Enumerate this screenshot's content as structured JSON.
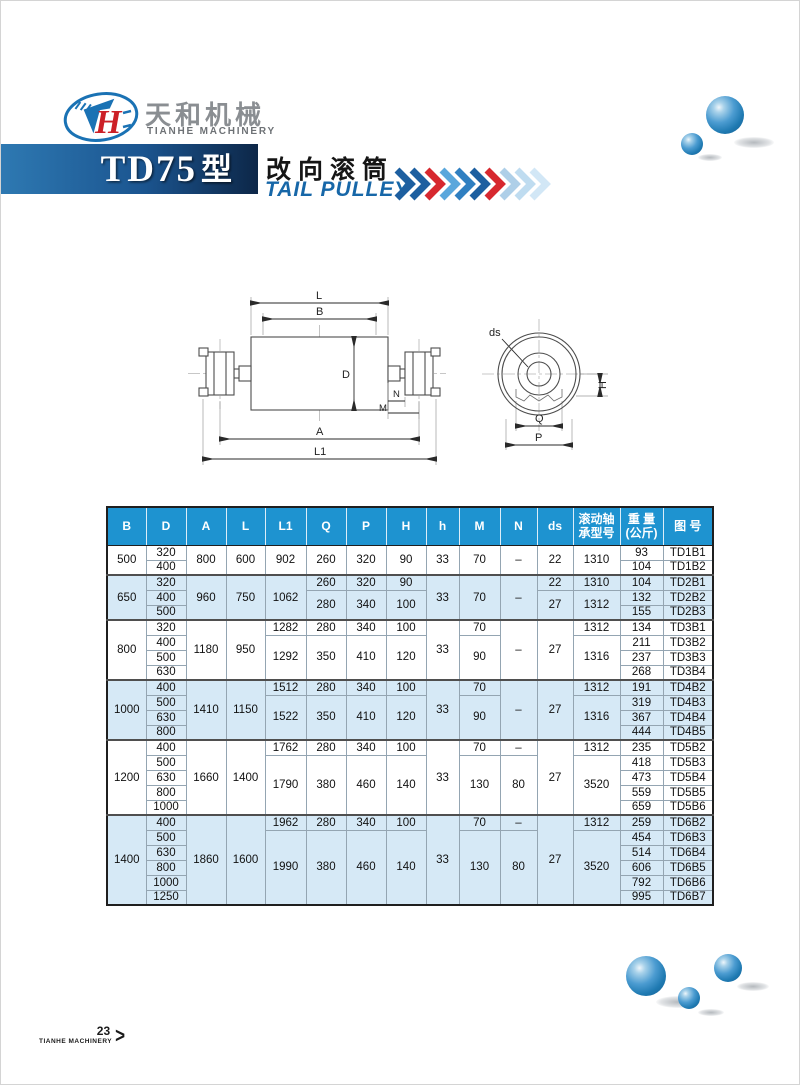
{
  "header": {
    "company_cn": "天和机械",
    "company_en": "TIANHE MACHINERY",
    "model": "TD75",
    "model_suffix": "型",
    "product_cn": "改向滚筒",
    "product_en": "TAIL PULLEY",
    "monogram": "H",
    "arrow_colors": [
      "#1d5fa0",
      "#1d5fa0",
      "#d7282f",
      "#5aa7dc",
      "#2f7fc1",
      "#1d5fa0",
      "#d7282f",
      "#aecfe8",
      "#bfdcf0",
      "#d2e7f6"
    ],
    "accent_blue": "#1e93d0",
    "accent_red": "#d7282f"
  },
  "drawing": {
    "labels": {
      "L": "L",
      "B": "B",
      "D": "D",
      "A": "A",
      "L1": "L1",
      "N": "N",
      "M": "M",
      "ds": "ds",
      "H": "H",
      "Q": "Q",
      "P": "P"
    }
  },
  "table": {
    "columns": [
      "B",
      "D",
      "A",
      "L",
      "L1",
      "Q",
      "P",
      "H",
      "h",
      "M",
      "N",
      "ds",
      "滚动轴\n承型号",
      "重 量\n(公斤)",
      "图 号"
    ],
    "shade_color": "#d6e9f6",
    "header_color": "#1e93d0",
    "rows": [
      {
        "shade": false,
        "gs": false,
        "cells": [
          {
            "t": "500",
            "rs": 2
          },
          {
            "t": "320"
          },
          {
            "t": "800",
            "rs": 2
          },
          {
            "t": "600",
            "rs": 2
          },
          {
            "t": "902",
            "rs": 2
          },
          {
            "t": "260",
            "rs": 2
          },
          {
            "t": "320",
            "rs": 2
          },
          {
            "t": "90",
            "rs": 2
          },
          {
            "t": "33",
            "rs": 2
          },
          {
            "t": "70",
            "rs": 2
          },
          {
            "t": "–",
            "rs": 2
          },
          {
            "t": "22",
            "rs": 2
          },
          {
            "t": "1310",
            "rs": 2
          },
          {
            "t": "93"
          },
          {
            "t": "TD1B1"
          }
        ]
      },
      {
        "shade": false,
        "gs": false,
        "cells": [
          {
            "t": "400"
          },
          {
            "t": "104"
          },
          {
            "t": "TD1B2"
          }
        ]
      },
      {
        "shade": true,
        "gs": true,
        "cells": [
          {
            "t": "650",
            "rs": 3
          },
          {
            "t": "320"
          },
          {
            "t": "960",
            "rs": 3
          },
          {
            "t": "750",
            "rs": 3
          },
          {
            "t": "1062",
            "rs": 3
          },
          {
            "t": "260"
          },
          {
            "t": "320"
          },
          {
            "t": "90"
          },
          {
            "t": "33",
            "rs": 3
          },
          {
            "t": "70",
            "rs": 3
          },
          {
            "t": "–",
            "rs": 3
          },
          {
            "t": "22"
          },
          {
            "t": "1310"
          },
          {
            "t": "104"
          },
          {
            "t": "TD2B1"
          }
        ]
      },
      {
        "shade": true,
        "gs": false,
        "cells": [
          {
            "t": "400"
          },
          {
            "t": "280",
            "rs": 2
          },
          {
            "t": "340",
            "rs": 2
          },
          {
            "t": "100",
            "rs": 2
          },
          {
            "t": "27",
            "rs": 2
          },
          {
            "t": "1312",
            "rs": 2
          },
          {
            "t": "132"
          },
          {
            "t": "TD2B2"
          }
        ]
      },
      {
        "shade": true,
        "gs": false,
        "cells": [
          {
            "t": "500"
          },
          {
            "t": "155"
          },
          {
            "t": "TD2B3"
          }
        ]
      },
      {
        "shade": false,
        "gs": true,
        "cells": [
          {
            "t": "800",
            "rs": 4
          },
          {
            "t": "320"
          },
          {
            "t": "1180",
            "rs": 4
          },
          {
            "t": "950",
            "rs": 4
          },
          {
            "t": "1282"
          },
          {
            "t": "280"
          },
          {
            "t": "340"
          },
          {
            "t": "100"
          },
          {
            "t": "33",
            "rs": 4
          },
          {
            "t": "70"
          },
          {
            "t": "–",
            "rs": 4
          },
          {
            "t": "27",
            "rs": 4
          },
          {
            "t": "1312"
          },
          {
            "t": "134"
          },
          {
            "t": "TD3B1"
          }
        ]
      },
      {
        "shade": false,
        "gs": false,
        "cells": [
          {
            "t": "400"
          },
          {
            "t": "1292",
            "rs": 3
          },
          {
            "t": "350",
            "rs": 3
          },
          {
            "t": "410",
            "rs": 3
          },
          {
            "t": "120",
            "rs": 3
          },
          {
            "t": "90",
            "rs": 3
          },
          {
            "t": "1316",
            "rs": 3
          },
          {
            "t": "211"
          },
          {
            "t": "TD3B2"
          }
        ]
      },
      {
        "shade": false,
        "gs": false,
        "cells": [
          {
            "t": "500"
          },
          {
            "t": "237"
          },
          {
            "t": "TD3B3"
          }
        ]
      },
      {
        "shade": false,
        "gs": false,
        "cells": [
          {
            "t": "630"
          },
          {
            "t": "268"
          },
          {
            "t": "TD3B4"
          }
        ]
      },
      {
        "shade": true,
        "gs": true,
        "cells": [
          {
            "t": "1000",
            "rs": 4
          },
          {
            "t": "400"
          },
          {
            "t": "1410",
            "rs": 4
          },
          {
            "t": "1150",
            "rs": 4
          },
          {
            "t": "1512"
          },
          {
            "t": "280"
          },
          {
            "t": "340"
          },
          {
            "t": "100"
          },
          {
            "t": "33",
            "rs": 4
          },
          {
            "t": "70"
          },
          {
            "t": "–",
            "rs": 4
          },
          {
            "t": "27",
            "rs": 4
          },
          {
            "t": "1312"
          },
          {
            "t": "191"
          },
          {
            "t": "TD4B2"
          }
        ]
      },
      {
        "shade": true,
        "gs": false,
        "cells": [
          {
            "t": "500"
          },
          {
            "t": "1522",
            "rs": 3
          },
          {
            "t": "350",
            "rs": 3
          },
          {
            "t": "410",
            "rs": 3
          },
          {
            "t": "120",
            "rs": 3
          },
          {
            "t": "90",
            "rs": 3
          },
          {
            "t": "1316",
            "rs": 3
          },
          {
            "t": "319"
          },
          {
            "t": "TD4B3"
          }
        ]
      },
      {
        "shade": true,
        "gs": false,
        "cells": [
          {
            "t": "630"
          },
          {
            "t": "367"
          },
          {
            "t": "TD4B4"
          }
        ]
      },
      {
        "shade": true,
        "gs": false,
        "cells": [
          {
            "t": "800"
          },
          {
            "t": "444"
          },
          {
            "t": "TD4B5"
          }
        ]
      },
      {
        "shade": false,
        "gs": true,
        "cells": [
          {
            "t": "1200",
            "rs": 5
          },
          {
            "t": "400"
          },
          {
            "t": "1660",
            "rs": 5
          },
          {
            "t": "1400",
            "rs": 5
          },
          {
            "t": "1762"
          },
          {
            "t": "280"
          },
          {
            "t": "340"
          },
          {
            "t": "100"
          },
          {
            "t": "33",
            "rs": 5
          },
          {
            "t": "70"
          },
          {
            "t": "–"
          },
          {
            "t": "27",
            "rs": 5
          },
          {
            "t": "1312"
          },
          {
            "t": "235"
          },
          {
            "t": "TD5B2"
          }
        ]
      },
      {
        "shade": false,
        "gs": false,
        "cells": [
          {
            "t": "500"
          },
          {
            "t": "1790",
            "rs": 4
          },
          {
            "t": "380",
            "rs": 4
          },
          {
            "t": "460",
            "rs": 4
          },
          {
            "t": "140",
            "rs": 4
          },
          {
            "t": "130",
            "rs": 4
          },
          {
            "t": "80",
            "rs": 4
          },
          {
            "t": "3520",
            "rs": 4
          },
          {
            "t": "418"
          },
          {
            "t": "TD5B3"
          }
        ]
      },
      {
        "shade": false,
        "gs": false,
        "cells": [
          {
            "t": "630"
          },
          {
            "t": "473"
          },
          {
            "t": "TD5B4"
          }
        ]
      },
      {
        "shade": false,
        "gs": false,
        "cells": [
          {
            "t": "800"
          },
          {
            "t": "559"
          },
          {
            "t": "TD5B5"
          }
        ]
      },
      {
        "shade": false,
        "gs": false,
        "cells": [
          {
            "t": "1000"
          },
          {
            "t": "659"
          },
          {
            "t": "TD5B6"
          }
        ]
      },
      {
        "shade": true,
        "gs": true,
        "cells": [
          {
            "t": "1400",
            "rs": 6
          },
          {
            "t": "400"
          },
          {
            "t": "1860",
            "rs": 6
          },
          {
            "t": "1600",
            "rs": 6
          },
          {
            "t": "1962"
          },
          {
            "t": "280"
          },
          {
            "t": "340"
          },
          {
            "t": "100"
          },
          {
            "t": "33",
            "rs": 6
          },
          {
            "t": "70"
          },
          {
            "t": "–"
          },
          {
            "t": "27",
            "rs": 6
          },
          {
            "t": "1312"
          },
          {
            "t": "259"
          },
          {
            "t": "TD6B2"
          }
        ]
      },
      {
        "shade": true,
        "gs": false,
        "cells": [
          {
            "t": "500"
          },
          {
            "t": "1990",
            "rs": 5
          },
          {
            "t": "380",
            "rs": 5
          },
          {
            "t": "460",
            "rs": 5
          },
          {
            "t": "140",
            "rs": 5
          },
          {
            "t": "130",
            "rs": 5
          },
          {
            "t": "80",
            "rs": 5
          },
          {
            "t": "3520",
            "rs": 5
          },
          {
            "t": "454"
          },
          {
            "t": "TD6B3"
          }
        ]
      },
      {
        "shade": true,
        "gs": false,
        "cells": [
          {
            "t": "630"
          },
          {
            "t": "514"
          },
          {
            "t": "TD6B4"
          }
        ]
      },
      {
        "shade": true,
        "gs": false,
        "cells": [
          {
            "t": "800"
          },
          {
            "t": "606"
          },
          {
            "t": "TD6B5"
          }
        ]
      },
      {
        "shade": true,
        "gs": false,
        "cells": [
          {
            "t": "1000"
          },
          {
            "t": "792"
          },
          {
            "t": "TD6B6"
          }
        ]
      },
      {
        "shade": true,
        "gs": false,
        "cells": [
          {
            "t": "1250"
          },
          {
            "t": "995"
          },
          {
            "t": "TD6B7"
          }
        ]
      }
    ]
  },
  "footer": {
    "page_number": "23",
    "company": "TIANHE MACHINERY",
    "arrow": ">"
  }
}
